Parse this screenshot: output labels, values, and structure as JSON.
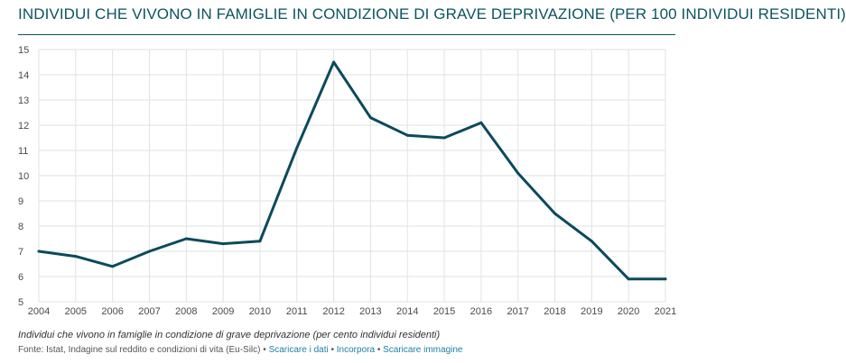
{
  "header": {
    "title": "INDIVIDUI CHE VIVONO IN FAMIGLIE IN CONDIZIONE DI GRAVE DEPRIVAZIONE (PER 100 INDIVIDUI RESIDENTI)"
  },
  "footer": {
    "subtitle": "Individui che vivono in famiglie in condizione di grave deprivazione (per cento individui residenti)",
    "source": "Fonte: Istat, Indagine sul reddito e condizioni di vita (Eu-Silc)",
    "separator": "•",
    "links": {
      "download_data": "Scaricare i dati",
      "embed": "Incorpora",
      "download_image": "Scaricare immagine"
    }
  },
  "colors": {
    "accent": "#0c5460",
    "line": "#0b4a5c",
    "grid": "#e2e2e2",
    "link": "#1e7fa8"
  },
  "chart_data": {
    "type": "line",
    "title": "INDIVIDUI CHE VIVONO IN FAMIGLIE IN CONDIZIONE DI GRAVE DEPRIVAZIONE (PER 100 INDIVIDUI RESIDENTI)",
    "xlabel": "",
    "ylabel": "",
    "categories": [
      "2004",
      "2005",
      "2006",
      "2007",
      "2008",
      "2009",
      "2010",
      "2011",
      "2012",
      "2013",
      "2014",
      "2015",
      "2016",
      "2017",
      "2018",
      "2019",
      "2020",
      "2021"
    ],
    "series": [
      {
        "values": [
          7.0,
          6.8,
          6.4,
          7.0,
          7.5,
          7.3,
          7.4,
          11.1,
          14.5,
          12.3,
          11.6,
          11.5,
          12.1,
          10.1,
          8.5,
          7.4,
          5.9,
          5.9
        ]
      }
    ],
    "ylim": [
      5,
      15
    ],
    "yticks": [
      5,
      6,
      7,
      8,
      9,
      10,
      11,
      12,
      13,
      14,
      15
    ],
    "grid": true,
    "legend": "none"
  }
}
